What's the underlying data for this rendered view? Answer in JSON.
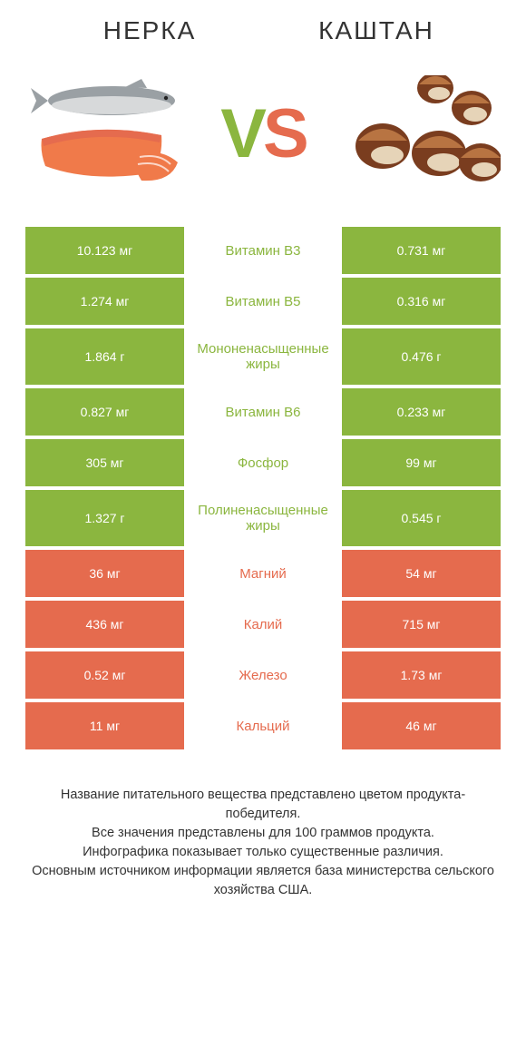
{
  "colors": {
    "left_winner": "#8bb63f",
    "right_winner": "#e56b4e",
    "neutral_bg": "#ffffff",
    "text": "#333333"
  },
  "header": {
    "left_title": "НЕРКА",
    "right_title": "КАШТАН",
    "vs_v": "V",
    "vs_s": "S"
  },
  "rows": [
    {
      "left": "10.123 мг",
      "label": "Витамин B3",
      "right": "0.731 мг",
      "winner": "left",
      "tall": false
    },
    {
      "left": "1.274 мг",
      "label": "Витамин B5",
      "right": "0.316 мг",
      "winner": "left",
      "tall": false
    },
    {
      "left": "1.864 г",
      "label": "Мононенасыщенные жиры",
      "right": "0.476 г",
      "winner": "left",
      "tall": true
    },
    {
      "left": "0.827 мг",
      "label": "Витамин B6",
      "right": "0.233 мг",
      "winner": "left",
      "tall": false
    },
    {
      "left": "305 мг",
      "label": "Фосфор",
      "right": "99 мг",
      "winner": "left",
      "tall": false
    },
    {
      "left": "1.327 г",
      "label": "Полиненасыщенные жиры",
      "right": "0.545 г",
      "winner": "left",
      "tall": true
    },
    {
      "left": "36 мг",
      "label": "Магний",
      "right": "54 мг",
      "winner": "right",
      "tall": false
    },
    {
      "left": "436 мг",
      "label": "Калий",
      "right": "715 мг",
      "winner": "right",
      "tall": false
    },
    {
      "left": "0.52 мг",
      "label": "Железо",
      "right": "1.73 мг",
      "winner": "right",
      "tall": false
    },
    {
      "left": "11 мг",
      "label": "Кальций",
      "right": "46 мг",
      "winner": "right",
      "tall": false
    }
  ],
  "footnote": "Название питательного вещества представлено цветом продукта-победителя.\nВсе значения представлены для 100 граммов продукта.\nИнфографика показывает только существенные различия.\nОсновным источником информации является база министерства сельского хозяйства США."
}
